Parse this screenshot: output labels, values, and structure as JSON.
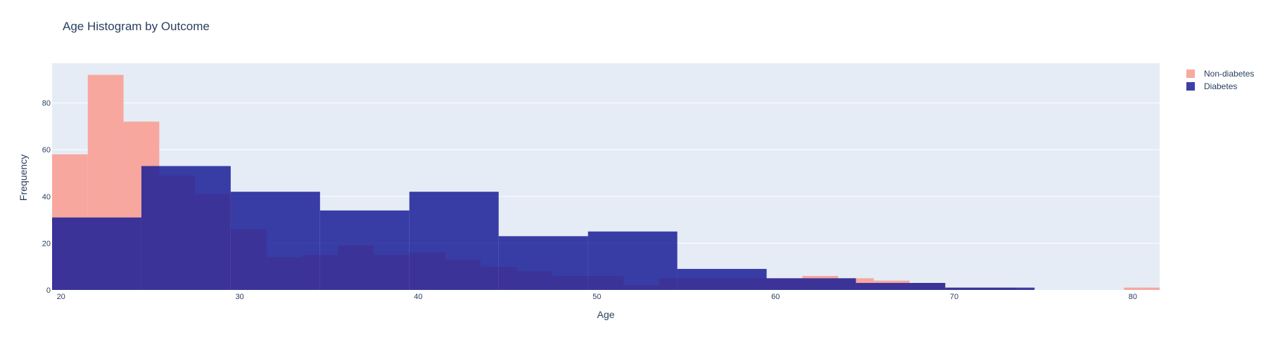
{
  "chart_data": {
    "type": "bar",
    "title": "Age Histogram by Outcome",
    "xlabel": "Age",
    "ylabel": "Frequency",
    "xlim": [
      19.5,
      81.5
    ],
    "ylim": [
      0,
      97
    ],
    "x_ticks": [
      20,
      30,
      40,
      50,
      60,
      70,
      80
    ],
    "y_ticks": [
      0,
      20,
      40,
      60,
      80
    ],
    "grid": true,
    "legend_position": "top-right",
    "bar_mode": "overlay",
    "series": [
      {
        "name": "Non-diabetes",
        "color": "#f8a095",
        "bins": [
          {
            "x0": 19.5,
            "x1": 21.5,
            "y": 58
          },
          {
            "x0": 21.5,
            "x1": 23.5,
            "y": 92
          },
          {
            "x0": 23.5,
            "x1": 25.5,
            "y": 72
          },
          {
            "x0": 25.5,
            "x1": 27.5,
            "y": 49
          },
          {
            "x0": 27.5,
            "x1": 29.5,
            "y": 41
          },
          {
            "x0": 29.5,
            "x1": 31.5,
            "y": 26
          },
          {
            "x0": 31.5,
            "x1": 33.5,
            "y": 14
          },
          {
            "x0": 33.5,
            "x1": 35.5,
            "y": 15
          },
          {
            "x0": 35.5,
            "x1": 37.5,
            "y": 19
          },
          {
            "x0": 37.5,
            "x1": 39.5,
            "y": 15
          },
          {
            "x0": 39.5,
            "x1": 41.5,
            "y": 16
          },
          {
            "x0": 41.5,
            "x1": 43.5,
            "y": 13
          },
          {
            "x0": 43.5,
            "x1": 45.5,
            "y": 10
          },
          {
            "x0": 45.5,
            "x1": 47.5,
            "y": 8
          },
          {
            "x0": 47.5,
            "x1": 49.5,
            "y": 6
          },
          {
            "x0": 49.5,
            "x1": 51.5,
            "y": 6
          },
          {
            "x0": 51.5,
            "x1": 53.5,
            "y": 2
          },
          {
            "x0": 53.5,
            "x1": 55.5,
            "y": 5
          },
          {
            "x0": 55.5,
            "x1": 57.5,
            "y": 5
          },
          {
            "x0": 57.5,
            "x1": 59.5,
            "y": 5
          },
          {
            "x0": 59.5,
            "x1": 61.5,
            "y": 5
          },
          {
            "x0": 61.5,
            "x1": 63.5,
            "y": 6
          },
          {
            "x0": 63.5,
            "x1": 65.5,
            "y": 5
          },
          {
            "x0": 65.5,
            "x1": 67.5,
            "y": 4
          },
          {
            "x0": 67.5,
            "x1": 69.5,
            "y": 3
          },
          {
            "x0": 69.5,
            "x1": 71.5,
            "y": 1
          },
          {
            "x0": 71.5,
            "x1": 73.5,
            "y": 1
          },
          {
            "x0": 73.5,
            "x1": 75.5,
            "y": 0
          },
          {
            "x0": 75.5,
            "x1": 77.5,
            "y": 0
          },
          {
            "x0": 77.5,
            "x1": 79.5,
            "y": 0
          },
          {
            "x0": 79.5,
            "x1": 81.5,
            "y": 1
          }
        ]
      },
      {
        "name": "Diabetes",
        "color": "#1a1f96",
        "bins": [
          {
            "x0": 19.5,
            "x1": 24.5,
            "y": 31
          },
          {
            "x0": 24.5,
            "x1": 29.5,
            "y": 53
          },
          {
            "x0": 29.5,
            "x1": 34.5,
            "y": 42
          },
          {
            "x0": 34.5,
            "x1": 39.5,
            "y": 34
          },
          {
            "x0": 39.5,
            "x1": 44.5,
            "y": 42
          },
          {
            "x0": 44.5,
            "x1": 49.5,
            "y": 23
          },
          {
            "x0": 49.5,
            "x1": 54.5,
            "y": 25
          },
          {
            "x0": 54.5,
            "x1": 59.5,
            "y": 9
          },
          {
            "x0": 59.5,
            "x1": 64.5,
            "y": 5
          },
          {
            "x0": 64.5,
            "x1": 69.5,
            "y": 3
          },
          {
            "x0": 69.5,
            "x1": 74.5,
            "y": 1
          }
        ]
      }
    ]
  }
}
